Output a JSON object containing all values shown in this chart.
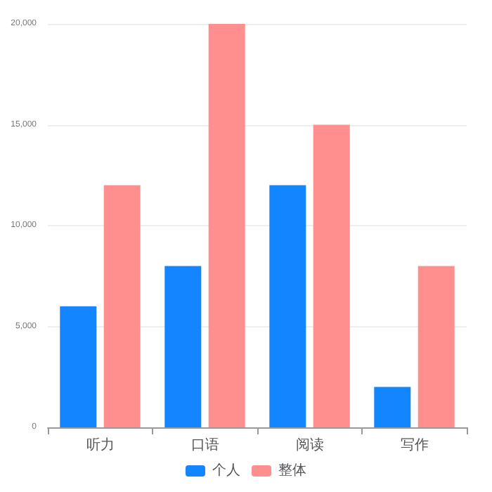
{
  "chart_data": {
    "type": "bar",
    "categories": [
      "听力",
      "口语",
      "阅读",
      "写作"
    ],
    "series": [
      {
        "name": "个人",
        "color": "#1385ff",
        "values": [
          6000,
          8000,
          12000,
          2000
        ]
      },
      {
        "name": "整体",
        "color": "#ff8f8f",
        "values": [
          12000,
          20000,
          15000,
          8000
        ]
      }
    ],
    "ylim": [
      0,
      20000
    ],
    "yticks": [
      {
        "value": 0,
        "label": "0"
      },
      {
        "value": 5000,
        "label": "5,000"
      },
      {
        "value": 10000,
        "label": "10,000"
      },
      {
        "value": 15000,
        "label": "15,000"
      },
      {
        "value": 20000,
        "label": "20,000"
      }
    ],
    "grid": "y",
    "legend": "bottom"
  }
}
